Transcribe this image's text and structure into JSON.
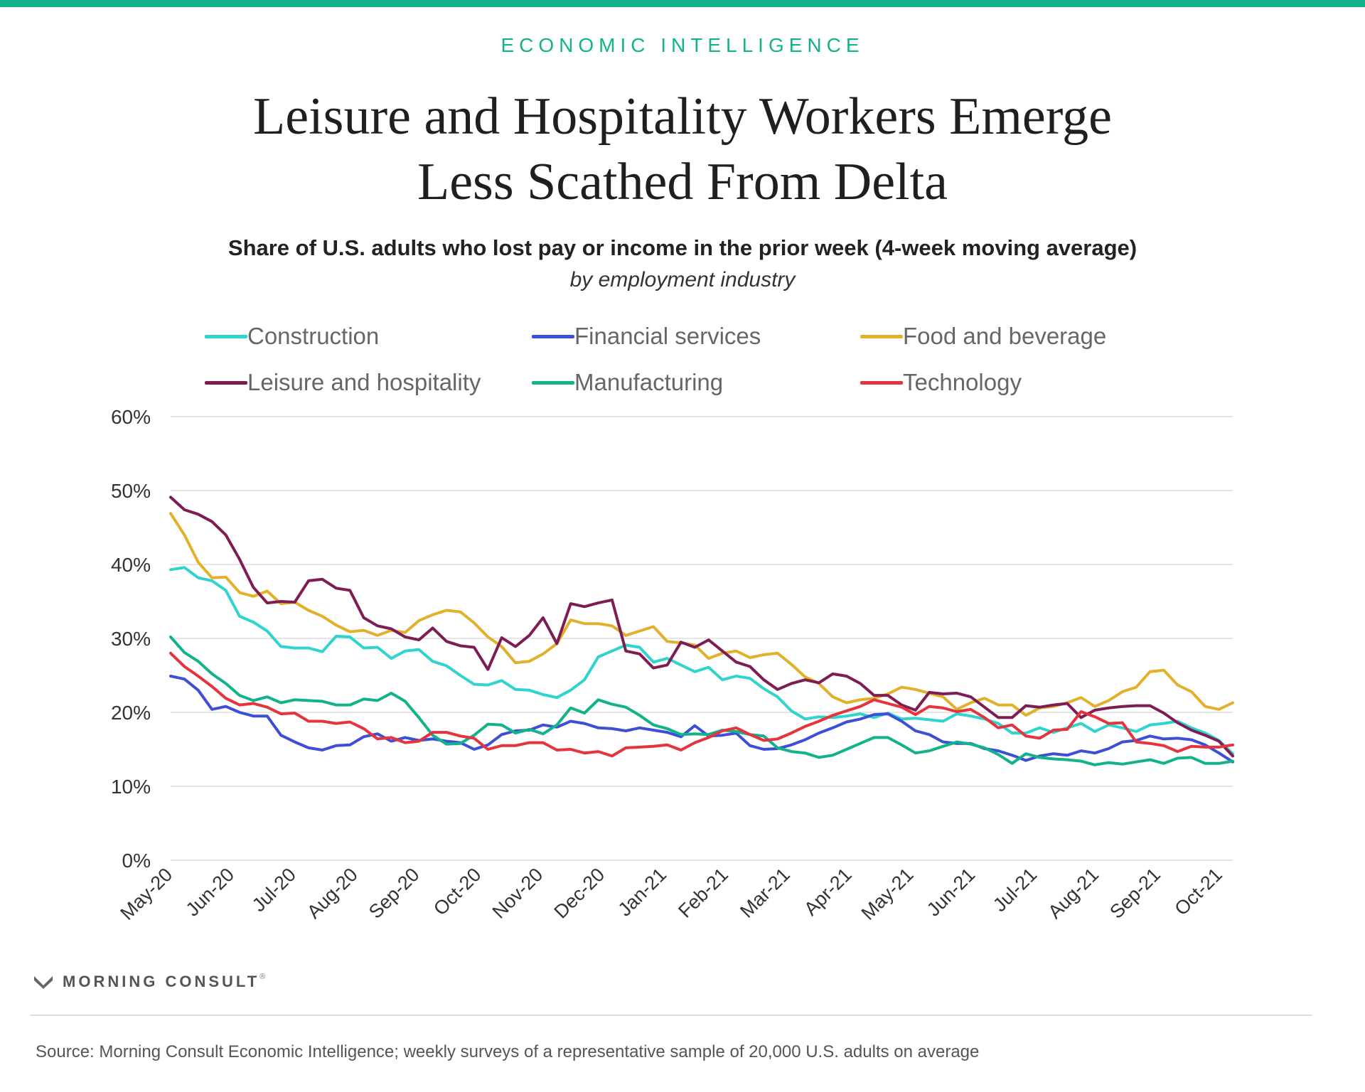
{
  "header": {
    "kicker": "ECONOMIC INTELLIGENCE",
    "title_line1": "Leisure and Hospitality Workers Emerge",
    "title_line2": "Less Scathed From Delta",
    "subtitle": "Share of U.S. adults who lost pay or income in the prior week (4-week moving average)",
    "subtitle2": "by employment industry"
  },
  "colors": {
    "accent": "#12b38a",
    "gridline": "#dddddd"
  },
  "footer": {
    "brand": "MORNING CONSULT",
    "brand_mark": "®",
    "logo_icon": "morning-consult-m-icon",
    "source": "Source: Morning Consult Economic Intelligence; weekly surveys of a representative sample of 20,000 U.S. adults on average"
  },
  "chart_data": {
    "type": "line",
    "xlabel": "",
    "ylabel": "",
    "ylim": [
      0,
      60
    ],
    "yticks": [
      "0%",
      "10%",
      "20%",
      "30%",
      "40%",
      "50%",
      "60%"
    ],
    "xticks": [
      "May-20",
      "Jun-20",
      "Jul-20",
      "Aug-20",
      "Sep-20",
      "Oct-20",
      "Nov-20",
      "Dec-20",
      "Jan-21",
      "Feb-21",
      "Mar-21",
      "Apr-21",
      "May-21",
      "Jun-21",
      "Jul-21",
      "Aug-21",
      "Sep-21",
      "Oct-21"
    ],
    "x_start": "May-20",
    "x_interval": "weekly",
    "grid": true,
    "legend_position": "top",
    "series": [
      {
        "name": "Construction",
        "color": "#2fd4cf",
        "values": [
          39.3,
          39.6,
          38.2,
          37.8,
          36.5,
          33.0,
          32.2,
          31.0,
          28.9,
          28.7,
          28.7,
          28.2,
          30.3,
          30.2,
          28.7,
          28.8,
          27.3,
          28.3,
          28.5,
          26.9,
          26.3,
          25.0,
          23.8,
          23.7,
          24.3,
          23.1,
          23.0,
          22.4,
          22.0,
          23.0,
          24.4,
          27.5,
          28.3,
          29.1,
          28.8,
          26.8,
          27.3,
          26.4,
          25.5,
          26.1,
          24.4,
          24.9,
          24.6,
          23.2,
          22.1,
          20.2,
          19.1,
          19.4,
          19.3,
          19.5,
          19.8,
          19.3,
          19.9,
          19.1,
          19.2,
          19.0,
          18.8,
          19.8,
          19.5,
          19.1,
          18.5,
          17.2,
          17.2,
          17.9,
          17.3,
          17.9,
          18.5,
          17.4,
          18.3,
          17.9,
          17.4,
          18.3,
          18.5,
          18.8,
          17.9,
          17.2,
          16.2,
          14.4
        ]
      },
      {
        "name": "Financial services",
        "color": "#3d4fd6",
        "values": [
          24.9,
          24.5,
          23.0,
          20.4,
          20.8,
          20.0,
          19.5,
          19.5,
          16.9,
          16.0,
          15.2,
          14.9,
          15.5,
          15.6,
          16.7,
          17.1,
          16.1,
          16.6,
          16.2,
          16.4,
          16.1,
          15.9,
          15.0,
          15.6,
          17.0,
          17.5,
          17.6,
          18.3,
          18.0,
          18.8,
          18.5,
          17.9,
          17.8,
          17.5,
          17.9,
          17.6,
          17.3,
          16.7,
          18.2,
          16.8,
          16.9,
          17.2,
          15.5,
          15.0,
          15.1,
          15.6,
          16.3,
          17.2,
          17.9,
          18.7,
          19.1,
          19.7,
          19.8,
          18.8,
          17.5,
          17.0,
          16.0,
          15.8,
          15.8,
          15.1,
          14.8,
          14.2,
          13.5,
          14.1,
          14.4,
          14.2,
          14.8,
          14.5,
          15.1,
          16.0,
          16.2,
          16.8,
          16.4,
          16.5,
          16.3,
          15.6,
          14.5,
          13.3
        ]
      },
      {
        "name": "Food and beverage",
        "color": "#e1b12b",
        "values": [
          46.9,
          44.0,
          40.3,
          38.2,
          38.3,
          36.2,
          35.7,
          36.4,
          34.7,
          34.9,
          33.8,
          33.0,
          31.8,
          30.9,
          31.1,
          30.4,
          31.1,
          30.8,
          32.4,
          33.2,
          33.8,
          33.6,
          32.1,
          30.2,
          28.9,
          26.7,
          26.9,
          27.9,
          29.3,
          32.5,
          32.0,
          32.0,
          31.7,
          30.4,
          31.0,
          31.6,
          29.6,
          29.4,
          29.1,
          27.3,
          28.0,
          28.3,
          27.4,
          27.8,
          28.0,
          26.5,
          24.8,
          23.9,
          22.1,
          21.3,
          21.7,
          21.9,
          22.5,
          23.4,
          23.1,
          22.6,
          22.1,
          20.4,
          21.3,
          21.9,
          21.0,
          21.0,
          19.6,
          20.6,
          20.8,
          21.3,
          22.0,
          20.8,
          21.6,
          22.8,
          23.4,
          25.5,
          25.7,
          23.7,
          22.8,
          20.8,
          20.4,
          21.3
        ]
      },
      {
        "name": "Leisure and hospitality",
        "color": "#7d1d54",
        "values": [
          49.1,
          47.4,
          46.8,
          45.8,
          44.0,
          40.7,
          36.9,
          34.8,
          35.0,
          34.9,
          37.8,
          38.0,
          36.8,
          36.5,
          32.8,
          31.7,
          31.3,
          30.2,
          29.8,
          31.4,
          29.6,
          29.0,
          28.8,
          25.8,
          30.1,
          28.9,
          30.4,
          32.8,
          29.3,
          34.7,
          34.3,
          34.8,
          35.2,
          28.3,
          27.9,
          26.0,
          26.4,
          29.5,
          28.8,
          29.8,
          28.3,
          26.8,
          26.2,
          24.4,
          23.1,
          23.9,
          24.4,
          24.0,
          25.2,
          24.9,
          23.9,
          22.3,
          22.3,
          21.0,
          20.3,
          22.7,
          22.5,
          22.6,
          22.1,
          20.7,
          19.3,
          19.3,
          20.9,
          20.7,
          21.0,
          21.2,
          19.3,
          20.3,
          20.6,
          20.8,
          20.9,
          20.9,
          19.9,
          18.6,
          17.6,
          16.9,
          16.1,
          14.1
        ]
      },
      {
        "name": "Manufacturing",
        "color": "#12b38a",
        "values": [
          30.2,
          28.1,
          26.9,
          25.2,
          23.9,
          22.3,
          21.6,
          22.1,
          21.3,
          21.7,
          21.6,
          21.5,
          21.0,
          21.0,
          21.8,
          21.6,
          22.6,
          21.5,
          19.3,
          16.9,
          15.7,
          15.8,
          16.9,
          18.4,
          18.3,
          17.2,
          17.7,
          17.1,
          18.3,
          20.6,
          19.9,
          21.7,
          21.1,
          20.7,
          19.6,
          18.3,
          17.8,
          17.0,
          17.1,
          17.0,
          17.6,
          17.4,
          17.0,
          16.8,
          15.2,
          14.7,
          14.5,
          13.9,
          14.2,
          15.0,
          15.8,
          16.6,
          16.6,
          15.6,
          14.5,
          14.8,
          15.4,
          16.0,
          15.7,
          15.2,
          14.3,
          13.1,
          14.4,
          13.9,
          13.7,
          13.6,
          13.4,
          12.9,
          13.2,
          13.0,
          13.3,
          13.6,
          13.1,
          13.8,
          13.9,
          13.1,
          13.1,
          13.4
        ]
      },
      {
        "name": "Technology",
        "color": "#e5343e",
        "values": [
          28.0,
          26.2,
          24.9,
          23.5,
          21.9,
          21.0,
          21.2,
          20.7,
          19.8,
          19.9,
          18.8,
          18.8,
          18.5,
          18.7,
          17.8,
          16.4,
          16.6,
          15.9,
          16.1,
          17.3,
          17.3,
          16.8,
          16.5,
          15.0,
          15.5,
          15.5,
          15.9,
          15.9,
          14.9,
          15.0,
          14.5,
          14.7,
          14.1,
          15.2,
          15.3,
          15.4,
          15.6,
          14.9,
          15.9,
          16.6,
          17.5,
          17.9,
          17.0,
          16.2,
          16.4,
          17.2,
          18.1,
          18.8,
          19.6,
          20.2,
          20.8,
          21.7,
          21.2,
          20.7,
          19.7,
          20.8,
          20.6,
          20.1,
          20.4,
          19.3,
          17.9,
          18.3,
          16.8,
          16.5,
          17.6,
          17.7,
          20.1,
          19.4,
          18.5,
          18.6,
          16.0,
          15.8,
          15.5,
          14.7,
          15.4,
          15.3,
          15.3,
          15.6
        ]
      }
    ]
  }
}
